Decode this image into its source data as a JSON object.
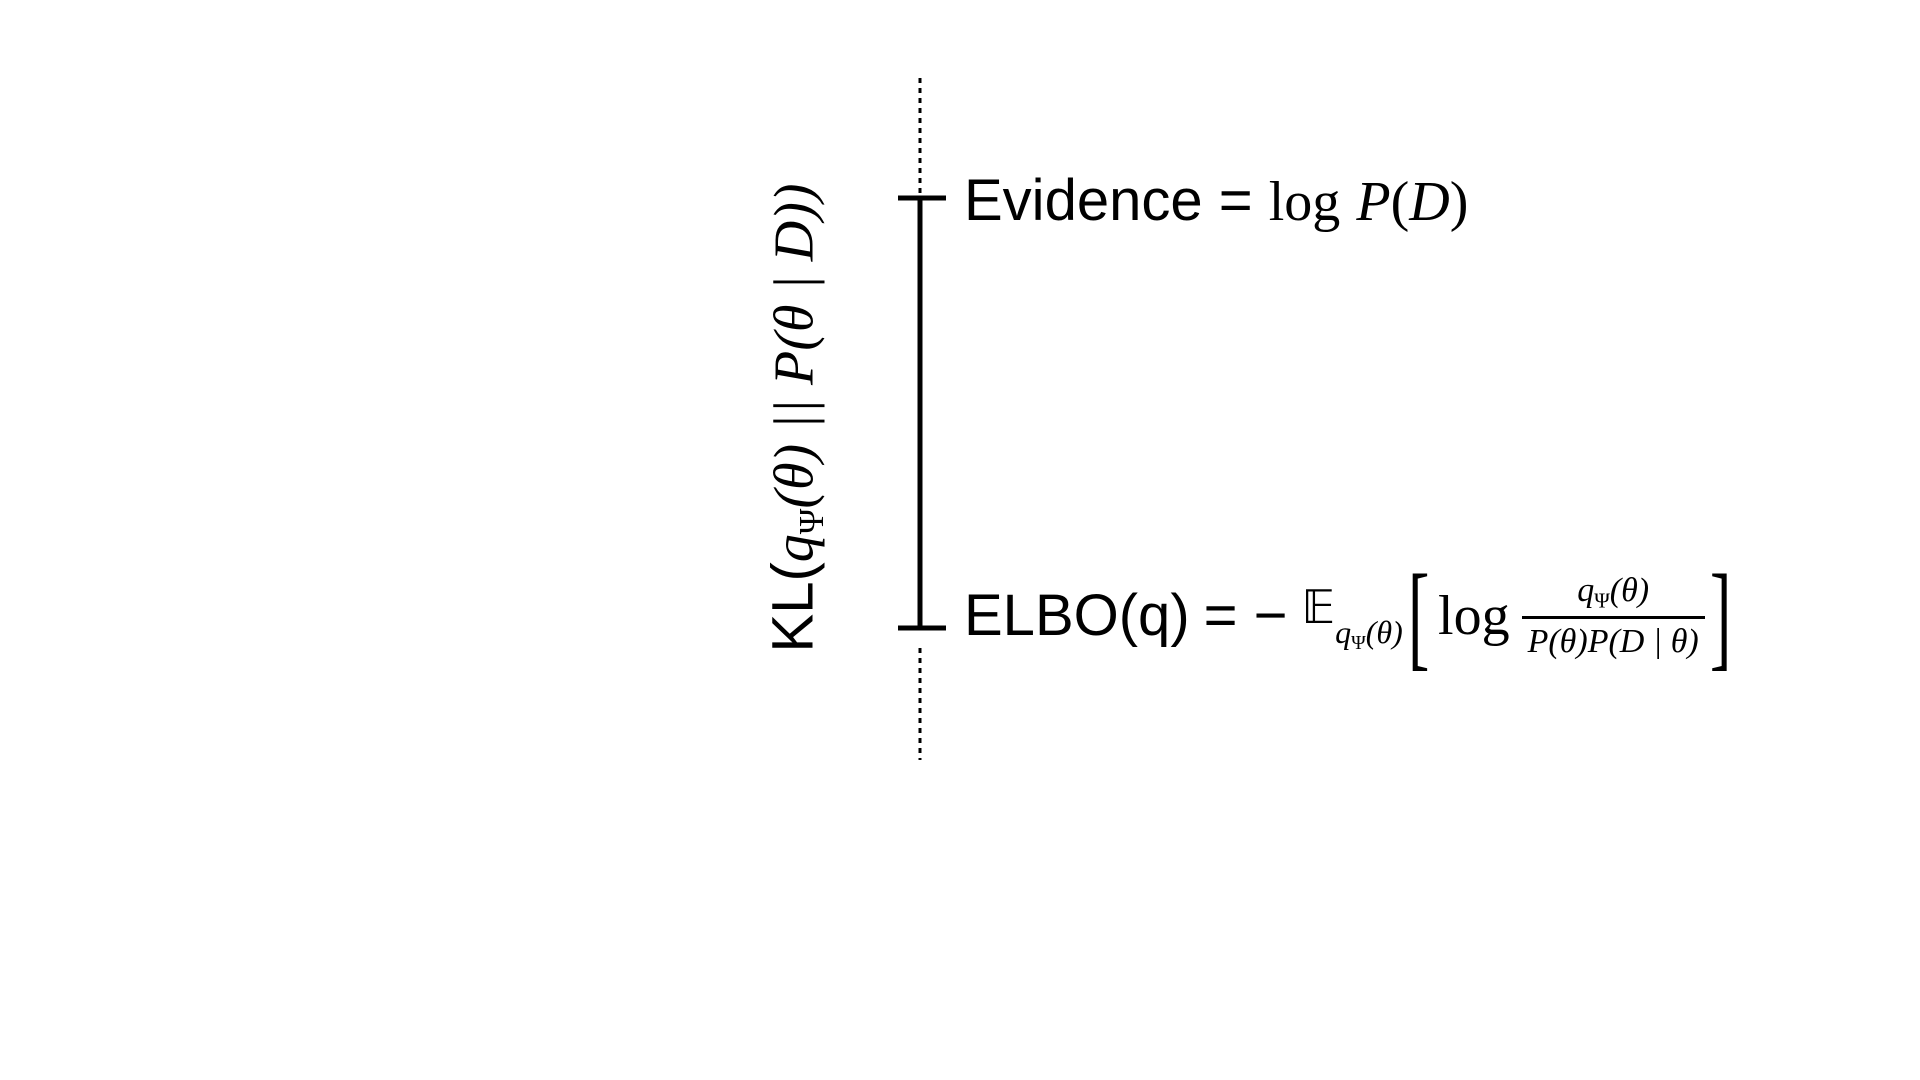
{
  "diagram": {
    "evidence": {
      "label": "Evidence",
      "equals": "=",
      "log": "log",
      "P": "P",
      "open_paren": "(",
      "D": "D",
      "close_paren": ")"
    },
    "elbo": {
      "label": "ELBO(q)",
      "equals": "= −",
      "expectation_symbol": "𝔼",
      "expectation_q": "q",
      "expectation_psi": "Ψ",
      "expectation_theta": "(θ)",
      "bracket_left": "[",
      "log": "log",
      "numerator_q": "q",
      "numerator_psi": "Ψ",
      "numerator_theta": "(θ)",
      "denominator": "P(θ)P(D | θ)",
      "bracket_right": "]"
    },
    "kl": {
      "prefix": "KL(",
      "q": "q",
      "psi": "Ψ",
      "rest": "(θ) || P(θ | D))"
    }
  }
}
